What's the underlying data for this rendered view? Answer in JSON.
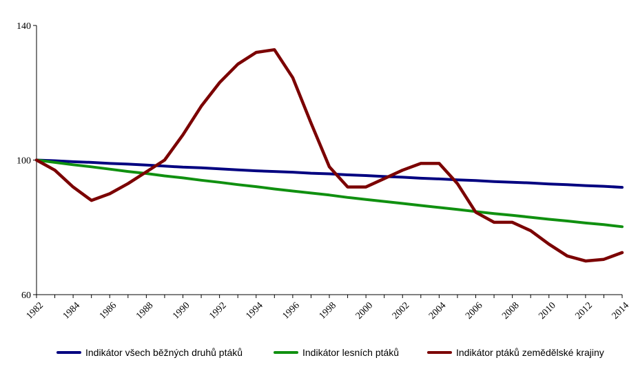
{
  "chart_data": {
    "type": "line",
    "x": [
      1982,
      1983,
      1984,
      1985,
      1986,
      1987,
      1988,
      1989,
      1990,
      1991,
      1992,
      1993,
      1994,
      1995,
      1996,
      1997,
      1998,
      1999,
      2000,
      2001,
      2002,
      2003,
      2004,
      2005,
      2006,
      2007,
      2008,
      2009,
      2010,
      2011,
      2012,
      2013,
      2014
    ],
    "x_tick_labels": [
      "1982",
      "1984",
      "1986",
      "1988",
      "1990",
      "1992",
      "1994",
      "1996",
      "1998",
      "2000",
      "2002",
      "2004",
      "2006",
      "2008",
      "2010",
      "2012",
      "2014"
    ],
    "y_tick_labels": [
      "60",
      "100",
      "140"
    ],
    "ylim": [
      60,
      140
    ],
    "xlim": [
      1982,
      2014
    ],
    "grid": false,
    "legend_position": "bottom",
    "series": [
      {
        "name": "Indikátor všech běžných druhů ptáků",
        "color": "#000080",
        "values": [
          100,
          99.8,
          99.5,
          99.3,
          99.0,
          98.8,
          98.5,
          98.2,
          97.9,
          97.7,
          97.4,
          97.1,
          96.8,
          96.6,
          96.4,
          96.1,
          95.9,
          95.6,
          95.4,
          95.1,
          94.9,
          94.6,
          94.4,
          94.1,
          93.9,
          93.6,
          93.4,
          93.2,
          92.9,
          92.7,
          92.4,
          92.2,
          91.9
        ]
      },
      {
        "name": "Indikátor lesních ptáků",
        "color": "#109010",
        "values": [
          100,
          99.3,
          98.6,
          98.0,
          97.3,
          96.6,
          96.0,
          95.3,
          94.7,
          94.0,
          93.4,
          92.7,
          92.1,
          91.4,
          90.8,
          90.2,
          89.6,
          88.9,
          88.3,
          87.7,
          87.1,
          86.5,
          85.9,
          85.3,
          84.7,
          84.1,
          83.6,
          83.0,
          82.4,
          81.9,
          81.3,
          80.8,
          80.2
        ]
      },
      {
        "name": "Indikátor ptáků zemědělské krajiny",
        "color": "#7b0000",
        "values": [
          100,
          97,
          92,
          88,
          90,
          93,
          96.5,
          100,
          107.5,
          116,
          123,
          128.5,
          132,
          132.8,
          124.5,
          111,
          98,
          92,
          92,
          94.5,
          97,
          99,
          99,
          93,
          84.5,
          81.5,
          81.5,
          79,
          75,
          71.5,
          70,
          70.5,
          72.5
        ]
      }
    ]
  }
}
